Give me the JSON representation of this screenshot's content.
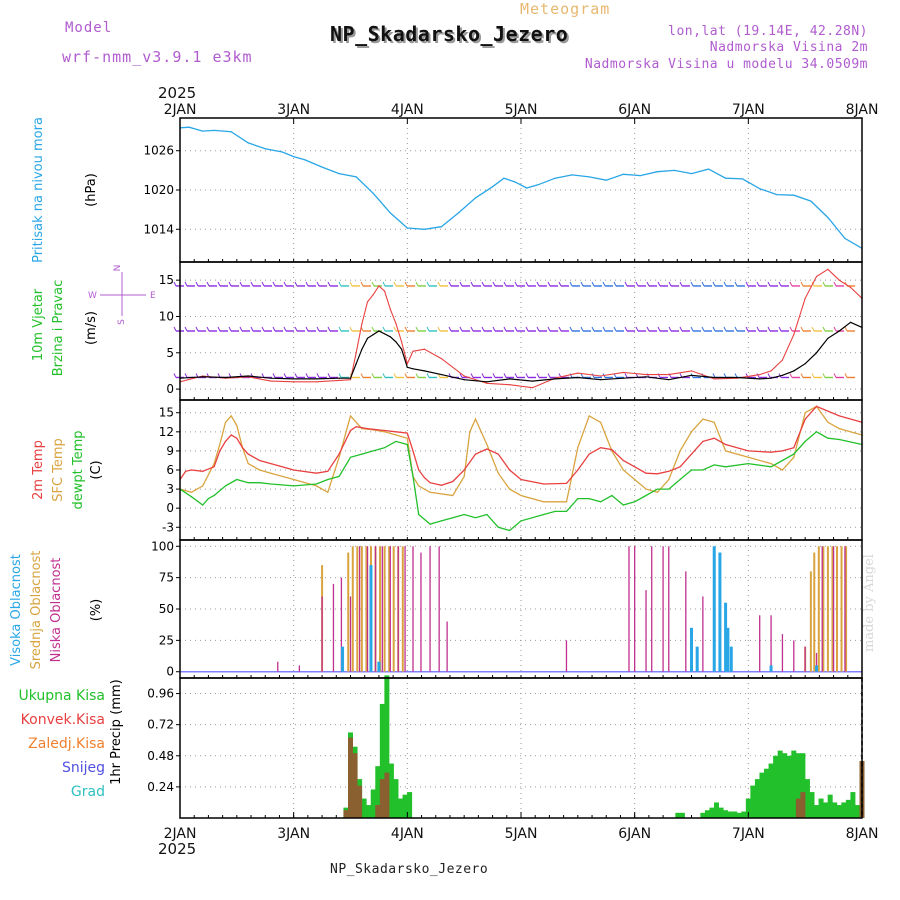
{
  "header": {
    "title": "NP_Skadarsko_Jezero",
    "subtitle": "Meteogram",
    "model_label": "Model",
    "model_name": "wrf-nmm_v3.9.1 e3km",
    "coords": "lon,lat (19.14E, 42.28N)",
    "elevation": "Nadmorska Visina 2m",
    "model_elevation": "Nadmorska Visina u modelu 34.0509m",
    "footer": "NP_Skadarsko_Jezero",
    "credit": "made by Angel"
  },
  "colors": {
    "pressure": "#29a6e6",
    "temp2m": "#e84040",
    "sfc": "#d9a440",
    "dewpt": "#22c02a",
    "high_cloud": "#29a6e6",
    "mid_cloud": "#d9a440",
    "low_cloud": "#c03090",
    "precip_total": "#22c02a",
    "precip_conv": "#e84040",
    "precip_frozen": "#f08030",
    "precip_snow": "#5050e0",
    "precip_grad": "#30c0c0",
    "wind_barb": "#8a2be2"
  },
  "chart_data": [
    {
      "id": "pressure",
      "type": "line",
      "ylabel_main": "Pritisak na nivou mora",
      "ylabel_unit": "(hPa)",
      "ylim": [
        1009,
        1031
      ],
      "yticks": [
        1014,
        1020,
        1026
      ],
      "ytick_labels": [
        "1014",
        "1020",
        "1026"
      ],
      "x_top_labels": [
        "2JAN",
        "3JAN",
        "4JAN",
        "5JAN",
        "6JAN",
        "7JAN",
        "8JAN"
      ],
      "x_top_year": "2025",
      "x": [
        0,
        0.08,
        0.2,
        0.3,
        0.45,
        0.6,
        0.75,
        0.9,
        1.0,
        1.1,
        1.25,
        1.4,
        1.55,
        1.7,
        1.85,
        2.0,
        2.15,
        2.3,
        2.45,
        2.6,
        2.75,
        2.85,
        2.95,
        3.05,
        3.15,
        3.3,
        3.45,
        3.6,
        3.75,
        3.9,
        4.05,
        4.2,
        4.35,
        4.5,
        4.65,
        4.8,
        4.95,
        5.1,
        5.25,
        5.4,
        5.55,
        5.7,
        5.85,
        6.0
      ],
      "values": [
        1029.5,
        1029.6,
        1029.0,
        1029.1,
        1028.9,
        1027.2,
        1026.3,
        1025.8,
        1025.1,
        1024.6,
        1023.5,
        1022.5,
        1022.0,
        1019.5,
        1016.5,
        1014.2,
        1014.0,
        1014.4,
        1016.5,
        1018.8,
        1020.5,
        1021.8,
        1021.2,
        1020.3,
        1020.8,
        1021.8,
        1022.3,
        1022.0,
        1021.5,
        1022.4,
        1022.2,
        1022.8,
        1023.0,
        1022.5,
        1023.2,
        1021.8,
        1021.7,
        1020.2,
        1019.3,
        1019.2,
        1018.3,
        1015.8,
        1012.6,
        1011.1
      ],
      "series_name": "MSLP"
    },
    {
      "id": "wind",
      "type": "line",
      "ylabel_main": "10m Vjetar",
      "ylabel_sub": "Brzina i Pravac",
      "ylabel_unit": "(m/s)",
      "ylim": [
        -1.5,
        17.5
      ],
      "yticks": [
        0,
        5,
        10,
        15
      ],
      "ytick_labels": [
        "0",
        "5",
        "10",
        "15"
      ],
      "compass": {
        "n": "N",
        "w": "W",
        "e": "E",
        "s": "S"
      },
      "series": [
        {
          "name": "speed",
          "x": [
            0,
            0.2,
            0.4,
            0.6,
            0.8,
            1.0,
            1.2,
            1.4,
            1.5,
            1.55,
            1.6,
            1.65,
            1.7,
            1.75,
            1.8,
            1.85,
            1.9,
            1.95,
            2.0,
            2.05,
            2.15,
            2.3,
            2.5,
            2.7,
            2.9,
            3.1,
            3.3,
            3.5,
            3.7,
            3.9,
            4.1,
            4.3,
            4.5,
            4.7,
            4.9,
            5.1,
            5.2,
            5.3,
            5.4,
            5.5,
            5.6,
            5.7,
            5.8,
            5.9,
            6.0
          ],
          "values": [
            1.5,
            1.7,
            1.6,
            1.8,
            1.5,
            1.4,
            1.4,
            1.5,
            1.5,
            3.5,
            5.5,
            7.0,
            7.5,
            8.0,
            7.6,
            7.2,
            6.5,
            5.5,
            3.0,
            2.8,
            2.5,
            2.0,
            1.3,
            1.0,
            1.4,
            1.1,
            1.4,
            1.6,
            1.3,
            1.5,
            1.7,
            1.3,
            1.9,
            1.6,
            1.6,
            1.4,
            1.5,
            1.9,
            2.5,
            3.5,
            5.0,
            7.0,
            8.0,
            9.2,
            8.5
          ]
        },
        {
          "name": "gust",
          "x": [
            0,
            0.2,
            0.4,
            0.6,
            0.8,
            1.0,
            1.2,
            1.4,
            1.5,
            1.55,
            1.6,
            1.65,
            1.7,
            1.75,
            1.8,
            1.85,
            1.9,
            1.95,
            2.0,
            2.05,
            2.15,
            2.3,
            2.5,
            2.7,
            2.9,
            3.1,
            3.3,
            3.5,
            3.7,
            3.9,
            4.1,
            4.3,
            4.5,
            4.7,
            4.9,
            5.1,
            5.2,
            5.3,
            5.4,
            5.5,
            5.6,
            5.7,
            5.8,
            5.9,
            6.0
          ],
          "values": [
            1.0,
            1.8,
            1.5,
            1.7,
            1.1,
            1.0,
            1.0,
            1.2,
            1.3,
            5.0,
            9.0,
            12.0,
            13.0,
            14.2,
            13.5,
            11.0,
            9.0,
            6.5,
            3.5,
            5.2,
            5.5,
            4.2,
            1.8,
            0.8,
            0.6,
            0.2,
            1.5,
            2.2,
            1.8,
            2.3,
            2.0,
            2.0,
            2.5,
            1.4,
            1.5,
            2.0,
            2.5,
            4.0,
            7.5,
            12.5,
            15.5,
            16.5,
            15.0,
            14.0,
            12.5
          ]
        }
      ]
    },
    {
      "id": "temperature",
      "type": "line",
      "ylabel_lines": [
        "2m Temp",
        "SFC Temp",
        "dewpt Temp"
      ],
      "ylabel_unit": "(C)",
      "ylim": [
        -5,
        17
      ],
      "yticks": [
        -3,
        0,
        3,
        6,
        9,
        12,
        15
      ],
      "ytick_labels": [
        "-3",
        "0",
        "3",
        "6",
        "9",
        "12",
        "15"
      ],
      "series": [
        {
          "name": "2m Temp",
          "x": [
            0,
            0.05,
            0.1,
            0.2,
            0.3,
            0.35,
            0.4,
            0.45,
            0.5,
            0.55,
            0.6,
            0.7,
            0.8,
            1.0,
            1.2,
            1.3,
            1.4,
            1.5,
            1.55,
            1.65,
            1.7,
            1.8,
            1.9,
            2.0,
            2.05,
            2.1,
            2.15,
            2.2,
            2.3,
            2.4,
            2.5,
            2.6,
            2.7,
            2.8,
            2.9,
            3.0,
            3.2,
            3.4,
            3.5,
            3.6,
            3.7,
            3.8,
            3.9,
            4.0,
            4.1,
            4.2,
            4.3,
            4.4,
            4.5,
            4.6,
            4.7,
            4.8,
            5.0,
            5.2,
            5.3,
            5.4,
            5.5,
            5.6,
            5.8,
            6.0
          ],
          "values": [
            4.5,
            5.8,
            6.0,
            5.8,
            6.5,
            9.0,
            10.5,
            11.5,
            11.0,
            9.5,
            8.5,
            7.5,
            7.0,
            6.0,
            5.5,
            5.8,
            8.5,
            12.2,
            12.8,
            12.5,
            12.4,
            12.2,
            12.0,
            11.8,
            9.0,
            6.0,
            4.8,
            4.0,
            3.6,
            4.2,
            6.0,
            8.5,
            9.3,
            8.5,
            6.0,
            4.5,
            3.8,
            3.9,
            6.0,
            8.5,
            9.5,
            9.2,
            7.5,
            6.5,
            5.5,
            5.4,
            5.8,
            6.5,
            8.5,
            10.5,
            11.0,
            10.0,
            9.0,
            8.8,
            9.0,
            9.5,
            14.0,
            16.0,
            14.5,
            13.5
          ]
        },
        {
          "name": "SFC Temp",
          "x": [
            0,
            0.1,
            0.2,
            0.3,
            0.35,
            0.4,
            0.45,
            0.5,
            0.55,
            0.6,
            0.7,
            0.8,
            1.0,
            1.2,
            1.3,
            1.4,
            1.5,
            1.6,
            1.7,
            1.8,
            1.9,
            2.0,
            2.05,
            2.1,
            2.2,
            2.4,
            2.5,
            2.55,
            2.6,
            2.7,
            2.8,
            2.9,
            3.0,
            3.2,
            3.3,
            3.4,
            3.5,
            3.6,
            3.7,
            3.8,
            3.9,
            4.0,
            4.1,
            4.2,
            4.3,
            4.4,
            4.5,
            4.6,
            4.7,
            4.8,
            5.0,
            5.2,
            5.3,
            5.4,
            5.5,
            5.6,
            5.7,
            5.8,
            6.0
          ],
          "values": [
            3.0,
            2.5,
            3.5,
            7.0,
            10.0,
            13.5,
            14.5,
            13.0,
            9.5,
            7.0,
            6.0,
            5.5,
            4.5,
            3.5,
            2.5,
            8.0,
            14.5,
            12.5,
            12.3,
            12.0,
            11.5,
            11.0,
            5.0,
            3.5,
            2.5,
            2.0,
            5.0,
            12.0,
            14.0,
            10.0,
            5.5,
            3.0,
            2.0,
            1.0,
            1.0,
            1.0,
            9.5,
            14.5,
            13.5,
            9.0,
            6.0,
            4.5,
            3.0,
            2.5,
            4.5,
            9.0,
            12.0,
            14.0,
            13.5,
            9.0,
            8.0,
            7.0,
            6.0,
            8.0,
            15.0,
            16.0,
            13.5,
            12.5,
            11.5
          ]
        },
        {
          "name": "dewpt Temp",
          "x": [
            0,
            0.1,
            0.2,
            0.25,
            0.3,
            0.4,
            0.5,
            0.6,
            0.7,
            0.8,
            1.0,
            1.2,
            1.3,
            1.4,
            1.5,
            1.6,
            1.7,
            1.8,
            1.9,
            2.0,
            2.05,
            2.1,
            2.2,
            2.3,
            2.4,
            2.5,
            2.6,
            2.7,
            2.8,
            2.9,
            3.0,
            3.2,
            3.3,
            3.4,
            3.5,
            3.6,
            3.7,
            3.8,
            3.9,
            4.0,
            4.1,
            4.2,
            4.3,
            4.4,
            4.5,
            4.6,
            4.7,
            4.8,
            5.0,
            5.2,
            5.3,
            5.4,
            5.5,
            5.6,
            5.7,
            5.8,
            6.0
          ],
          "values": [
            3.0,
            1.8,
            0.5,
            1.5,
            2.0,
            3.5,
            4.5,
            4.0,
            4.0,
            3.8,
            3.5,
            3.8,
            4.5,
            5.0,
            8.0,
            8.5,
            9.0,
            9.5,
            10.5,
            10.0,
            5.0,
            -1.0,
            -2.5,
            -2.0,
            -1.5,
            -1.0,
            -1.5,
            -1.0,
            -3.0,
            -3.5,
            -2.0,
            -1.0,
            -0.5,
            -0.5,
            1.5,
            1.5,
            1.0,
            2.0,
            0.5,
            1.0,
            2.0,
            3.0,
            3.0,
            4.5,
            6.0,
            6.0,
            6.8,
            6.5,
            7.0,
            6.5,
            7.5,
            8.5,
            10.5,
            12.0,
            11.0,
            10.8,
            10.0
          ]
        }
      ]
    },
    {
      "id": "clouds",
      "type": "bar",
      "ylabel_lines": [
        "Visoka Oblacnost",
        "Srednja Oblacnost",
        "Niska Oblacnost"
      ],
      "ylabel_unit": "(%)",
      "ylim": [
        -5,
        105
      ],
      "yticks": [
        0,
        25,
        50,
        75,
        100
      ],
      "ytick_labels": [
        "0",
        "25",
        "50",
        "75",
        "100"
      ],
      "series": [
        {
          "name": "Niska Oblacnost",
          "x": [
            0.86,
            1.05,
            1.25,
            1.35,
            1.42,
            1.5,
            1.58,
            1.65,
            1.72,
            1.78,
            1.85,
            1.92,
            1.98,
            2.05,
            2.12,
            2.2,
            2.28,
            2.35,
            3.4,
            3.95,
            4.0,
            4.1,
            4.15,
            4.25,
            4.3,
            4.45,
            4.6,
            4.75,
            4.85,
            5.1,
            5.2,
            5.3,
            5.4,
            5.5,
            5.6,
            5.65,
            5.75,
            5.85
          ],
          "values": [
            8,
            5,
            60,
            70,
            75,
            60,
            100,
            100,
            100,
            100,
            100,
            100,
            100,
            100,
            95,
            100,
            100,
            40,
            25,
            100,
            100,
            65,
            100,
            100,
            100,
            80,
            60,
            20,
            15,
            45,
            45,
            30,
            25,
            20,
            15,
            100,
            100,
            100
          ]
        },
        {
          "name": "Srednja Oblacnost",
          "x": [
            1.25,
            1.48,
            1.52,
            1.56,
            1.6,
            1.64,
            1.68,
            1.72,
            1.76,
            1.8,
            1.84,
            1.88,
            1.92,
            1.96,
            5.5,
            5.55,
            5.58,
            5.62,
            5.66,
            5.7,
            5.74,
            5.78,
            5.82,
            5.86
          ],
          "values": [
            85,
            95,
            100,
            100,
            100,
            100,
            100,
            100,
            100,
            100,
            100,
            100,
            100,
            100,
            20,
            80,
            95,
            100,
            100,
            100,
            100,
            100,
            100,
            100
          ]
        },
        {
          "name": "Visoka Oblacnost",
          "x": [
            1.43,
            1.68,
            1.75,
            4.5,
            4.55,
            4.7,
            4.75,
            4.8,
            4.82,
            4.85,
            5.2,
            5.6
          ],
          "values": [
            20,
            85,
            8,
            35,
            20,
            100,
            95,
            55,
            35,
            20,
            5,
            5
          ]
        }
      ]
    },
    {
      "id": "precip",
      "type": "bar",
      "ylabel_main": "1hr Precip",
      "ylabel_unit": "(mm)",
      "ylim": [
        0,
        1.08
      ],
      "yticks": [
        0.24,
        0.48,
        0.72,
        0.96
      ],
      "ytick_labels": [
        "0.24",
        "0.48",
        "0.72",
        "0.96"
      ],
      "legend": [
        "Ukupna Kisa",
        "Konvek.Kisa",
        "Zaledj.Kisa",
        "Snijeg",
        "Grad"
      ],
      "x_labels": [
        "2JAN",
        "3JAN",
        "4JAN",
        "5JAN",
        "6JAN",
        "7JAN",
        "8JAN"
      ],
      "x_year": "2025",
      "series": [
        {
          "name": "Ukupna Kisa",
          "x": [
            1.46,
            1.5,
            1.54,
            1.58,
            1.62,
            1.66,
            1.7,
            1.74,
            1.78,
            1.82,
            1.86,
            1.9,
            1.94,
            1.98,
            2.02,
            4.38,
            4.42,
            4.6,
            4.64,
            4.68,
            4.72,
            4.76,
            4.8,
            4.84,
            4.88,
            4.92,
            4.96,
            5.0,
            5.04,
            5.08,
            5.12,
            5.16,
            5.2,
            5.24,
            5.28,
            5.32,
            5.36,
            5.4,
            5.44,
            5.48,
            5.52,
            5.56,
            5.6,
            5.64,
            5.68,
            5.72,
            5.76,
            5.8,
            5.84,
            5.88,
            5.92,
            5.96,
            6.0
          ],
          "values": [
            0.08,
            0.66,
            0.55,
            0.3,
            0.15,
            0.1,
            0.22,
            0.4,
            0.88,
            1.1,
            0.42,
            0.3,
            0.15,
            0.18,
            0.2,
            0.04,
            0.04,
            0.04,
            0.06,
            0.08,
            0.12,
            0.08,
            0.06,
            0.05,
            0.05,
            0.04,
            0.05,
            0.15,
            0.25,
            0.3,
            0.35,
            0.38,
            0.42,
            0.48,
            0.52,
            0.5,
            0.48,
            0.52,
            0.5,
            0.5,
            0.3,
            0.2,
            0.1,
            0.15,
            0.12,
            0.18,
            0.12,
            0.1,
            0.12,
            0.14,
            0.2,
            0.1,
            0.44
          ]
        },
        {
          "name": "Konvek.Kisa",
          "x": [
            1.46,
            1.5,
            1.54,
            1.58,
            1.74,
            1.78,
            1.82,
            5.44,
            5.48,
            6.0
          ],
          "values": [
            0.06,
            0.62,
            0.5,
            0.25,
            0.1,
            0.3,
            0.35,
            0.15,
            0.2,
            0.44
          ]
        }
      ]
    }
  ]
}
